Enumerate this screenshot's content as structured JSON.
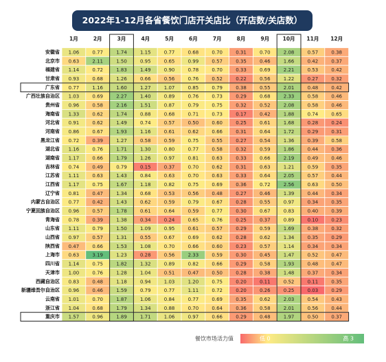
{
  "title": "2022年1-12月各省餐饮门店开关店比（开店数/关店数）",
  "table": {
    "columns": [
      "1月",
      "2月",
      "3月",
      "4月",
      "5月",
      "6月",
      "7月",
      "8月",
      "9月",
      "10月",
      "11月",
      "12月"
    ],
    "rows": [
      {
        "label": "安徽省",
        "cells": [
          "1.06",
          "0.77",
          "1.74",
          "1.15",
          "0.77",
          "0.68",
          "0.70",
          "0.31",
          "0.70",
          "2.08",
          "0.57",
          "0.38"
        ]
      },
      {
        "label": "北京市",
        "cells": [
          "0.63",
          "2.11",
          "1.50",
          "0.95",
          "0.65",
          "0.99",
          "0.57",
          "0.35",
          "0.46",
          "1.66",
          "0.42",
          "0.37"
        ]
      },
      {
        "label": "福建省",
        "cells": [
          "1.14",
          "0.72",
          "1.83",
          "1.49",
          "0.90",
          "0.78",
          "0.70",
          "0.33",
          "0.69",
          "2.21",
          "0.53",
          "0.42"
        ]
      },
      {
        "label": "甘肃省",
        "cells": [
          "0.93",
          "0.68",
          "1.26",
          "0.66",
          "0.56",
          "0.76",
          "0.52",
          "0.22",
          "0.56",
          "1.22",
          "0.27",
          "0.32"
        ]
      },
      {
        "label": "广东省",
        "cells": [
          "0.77",
          "1.16",
          "1.60",
          "1.27",
          "1.07",
          "0.85",
          "0.79",
          "0.38",
          "0.55",
          "2.01",
          "0.48",
          "0.42"
        ]
      },
      {
        "label": "广西壮族自治区",
        "cells": [
          "1.03",
          "0.69",
          "2.27",
          "1.40",
          "0.89",
          "0.76",
          "0.73",
          "0.29",
          "0.68",
          "2.33",
          "0.58",
          "0.46"
        ]
      },
      {
        "label": "贵州省",
        "cells": [
          "0.96",
          "0.58",
          "2.16",
          "1.51",
          "0.87",
          "0.79",
          "0.75",
          "0.32",
          "0.52",
          "2.08",
          "0.58",
          "0.46"
        ]
      },
      {
        "label": "海南省",
        "cells": [
          "1.33",
          "0.62",
          "1.74",
          "0.88",
          "0.68",
          "0.71",
          "0.73",
          "0.17",
          "0.42",
          "1.88",
          "0.74",
          "0.65"
        ]
      },
      {
        "label": "河北省",
        "cells": [
          "0.91",
          "0.62",
          "1.49",
          "0.74",
          "0.57",
          "0.50",
          "0.60",
          "0.25",
          "0.61",
          "1.68",
          "0.28",
          "0.24"
        ]
      },
      {
        "label": "河南省",
        "cells": [
          "0.86",
          "0.67",
          "1.93",
          "1.16",
          "0.61",
          "0.62",
          "0.66",
          "0.31",
          "0.64",
          "1.72",
          "0.29",
          "0.31"
        ]
      },
      {
        "label": "黑龙江省",
        "cells": [
          "0.72",
          "0.39",
          "1.27",
          "0.58",
          "0.59",
          "0.75",
          "0.55",
          "0.27",
          "0.54",
          "1.36",
          "0.39",
          "0.58"
        ]
      },
      {
        "label": "湖北省",
        "cells": [
          "1.16",
          "0.76",
          "1.71",
          "1.30",
          "0.80",
          "0.77",
          "0.58",
          "0.32",
          "0.59",
          "1.86",
          "0.44",
          "0.36"
        ]
      },
      {
        "label": "湖南省",
        "cells": [
          "1.17",
          "0.66",
          "1.79",
          "1.26",
          "0.97",
          "0.81",
          "0.63",
          "0.33",
          "0.66",
          "2.19",
          "0.49",
          "0.46"
        ]
      },
      {
        "label": "吉林省",
        "cells": [
          "0.74",
          "0.49",
          "0.79",
          "0.15",
          "0.37",
          "0.70",
          "0.62",
          "0.31",
          "0.63",
          "1.21",
          "0.59",
          "0.35"
        ]
      },
      {
        "label": "江苏省",
        "cells": [
          "1.11",
          "0.63",
          "1.43",
          "0.84",
          "0.63",
          "0.70",
          "0.63",
          "0.33",
          "0.64",
          "2.05",
          "0.57",
          "0.44"
        ]
      },
      {
        "label": "江西省",
        "cells": [
          "1.17",
          "0.75",
          "1.67",
          "1.18",
          "0.82",
          "0.75",
          "0.69",
          "0.36",
          "0.72",
          "2.56",
          "0.63",
          "0.50"
        ]
      },
      {
        "label": "辽宁省",
        "cells": [
          "0.81",
          "0.47",
          "1.34",
          "0.68",
          "0.53",
          "0.56",
          "0.48",
          "0.27",
          "0.46",
          "1.39",
          "0.44",
          "0.34"
        ]
      },
      {
        "label": "内蒙古自治区",
        "cells": [
          "0.77",
          "0.42",
          "1.43",
          "0.62",
          "0.59",
          "0.79",
          "0.67",
          "0.28",
          "0.55",
          "0.97",
          "0.34",
          "0.35"
        ]
      },
      {
        "label": "宁夏回族自治区",
        "cells": [
          "0.96",
          "0.57",
          "1.78",
          "0.61",
          "0.64",
          "0.59",
          "0.77",
          "0.30",
          "0.67",
          "0.83",
          "0.40",
          "0.39"
        ]
      },
      {
        "label": "青海省",
        "cells": [
          "0.78",
          "0.39",
          "1.38",
          "0.34",
          "0.24",
          "0.65",
          "0.76",
          "0.25",
          "0.37",
          "0.89",
          "0.10",
          "0.23"
        ]
      },
      {
        "label": "山东省",
        "cells": [
          "1.11",
          "0.79",
          "1.50",
          "1.09",
          "0.95",
          "0.61",
          "0.57",
          "0.29",
          "0.59",
          "1.69",
          "0.38",
          "0.32"
        ]
      },
      {
        "label": "山西省",
        "cells": [
          "0.97",
          "0.57",
          "1.31",
          "0.55",
          "0.67",
          "0.69",
          "0.62",
          "0.28",
          "0.62",
          "1.34",
          "0.35",
          "0.29"
        ]
      },
      {
        "label": "陕西省",
        "cells": [
          "0.47",
          "0.66",
          "1.53",
          "1.08",
          "0.70",
          "0.66",
          "0.60",
          "0.23",
          "0.57",
          "1.14",
          "0.34",
          "0.34"
        ]
      },
      {
        "label": "上海市",
        "cells": [
          "0.63",
          "3.19",
          "1.23",
          "0.28",
          "0.56",
          "2.33",
          "0.59",
          "0.30",
          "0.45",
          "1.47",
          "0.52",
          "0.47"
        ]
      },
      {
        "label": "四川省",
        "cells": [
          "1.14",
          "0.75",
          "1.82",
          "1.32",
          "0.89",
          "0.82",
          "0.66",
          "0.29",
          "0.58",
          "1.93",
          "0.48",
          "0.47"
        ]
      },
      {
        "label": "天津市",
        "cells": [
          "1.00",
          "0.76",
          "1.28",
          "1.04",
          "0.51",
          "0.47",
          "0.50",
          "0.28",
          "0.38",
          "1.48",
          "0.37",
          "0.34"
        ]
      },
      {
        "label": "西藏自治区",
        "cells": [
          "0.83",
          "0.48",
          "1.18",
          "0.94",
          "1.03",
          "1.20",
          "0.75",
          "0.20",
          "0.11",
          "0.52",
          "0.11",
          "0.35"
        ]
      },
      {
        "label": "新疆维吾尔自治区",
        "cells": [
          "0.96",
          "0.46",
          "1.59",
          "0.79",
          "0.77",
          "1.11",
          "0.72",
          "0.20",
          "0.26",
          "0.25",
          "0.03",
          "0.29"
        ]
      },
      {
        "label": "云南省",
        "cells": [
          "1.01",
          "0.70",
          "1.87",
          "1.06",
          "0.84",
          "0.77",
          "0.69",
          "0.35",
          "0.62",
          "2.03",
          "0.54",
          "0.43"
        ]
      },
      {
        "label": "浙江省",
        "cells": [
          "1.04",
          "0.68",
          "1.79",
          "1.34",
          "0.88",
          "0.70",
          "0.64",
          "0.36",
          "0.58",
          "2.01",
          "0.56",
          "0.44"
        ]
      },
      {
        "label": "重庆市",
        "cells": [
          "1.57",
          "0.96",
          "1.89",
          "1.71",
          "1.06",
          "0.97",
          "0.66",
          "0.29",
          "0.48",
          "1.97",
          "0.50",
          "0.37"
        ]
      }
    ],
    "highlight_columns": [
      "3月",
      "10月"
    ],
    "highlight_rows": [
      "广东省",
      "重庆市"
    ]
  },
  "legend": {
    "title": "餐饮市场活力值",
    "low": "低 0",
    "high": "高 3",
    "colors": [
      "#f8696b",
      "#ffeb84",
      "#63be7b"
    ]
  }
}
